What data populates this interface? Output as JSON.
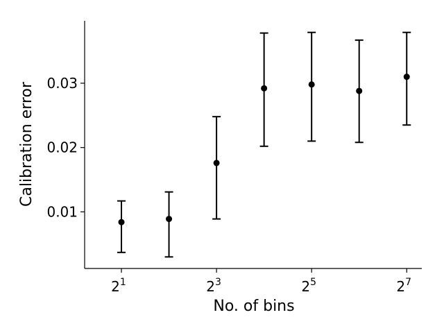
{
  "chart_data": {
    "type": "scatter",
    "xlabel": "No. of bins",
    "ylabel": "Calibration error",
    "x_scale": "log2",
    "x": [
      2,
      4,
      8,
      16,
      32,
      64,
      128
    ],
    "y": [
      0.0084,
      0.0089,
      0.0176,
      0.0292,
      0.0298,
      0.0288,
      0.031
    ],
    "y_err_low": [
      0.0037,
      0.003,
      0.0089,
      0.0202,
      0.021,
      0.0208,
      0.0235
    ],
    "y_err_high": [
      0.0117,
      0.0131,
      0.0248,
      0.0378,
      0.0379,
      0.0367,
      0.0379
    ],
    "xlim": [
      1.17,
      159.5
    ],
    "ylim": [
      0.0012,
      0.0397
    ],
    "x_ticks": [
      {
        "value": 2,
        "base": "2",
        "exp": "1"
      },
      {
        "value": 8,
        "base": "2",
        "exp": "3"
      },
      {
        "value": 32,
        "base": "2",
        "exp": "5"
      },
      {
        "value": 128,
        "base": "2",
        "exp": "7"
      }
    ],
    "y_ticks": [
      {
        "value": 0.01,
        "label": "0.01"
      },
      {
        "value": 0.02,
        "label": "0.02"
      },
      {
        "value": 0.03,
        "label": "0.03"
      }
    ],
    "grid": false,
    "marker_color": "#000000"
  }
}
